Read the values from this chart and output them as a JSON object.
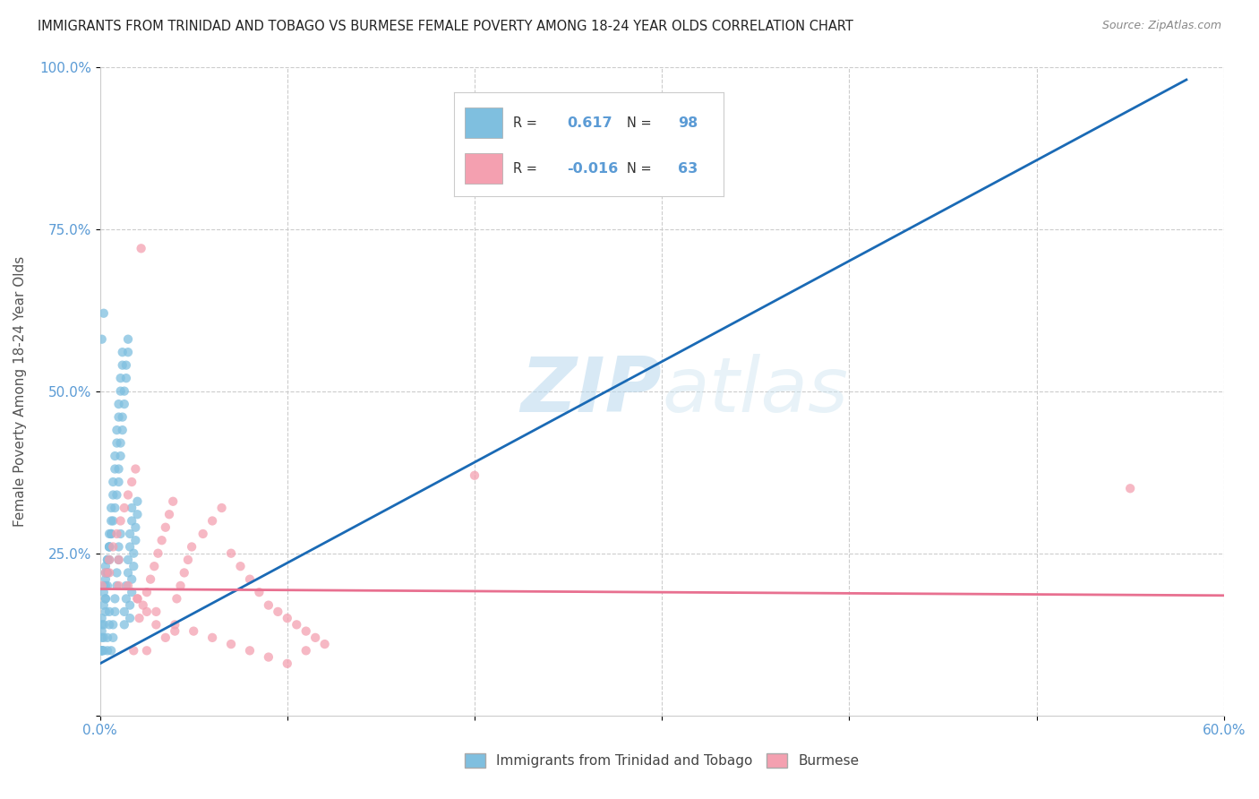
{
  "title": "IMMIGRANTS FROM TRINIDAD AND TOBAGO VS BURMESE FEMALE POVERTY AMONG 18-24 YEAR OLDS CORRELATION CHART",
  "source": "Source: ZipAtlas.com",
  "ylabel": "Female Poverty Among 18-24 Year Olds",
  "xlim": [
    0.0,
    0.6
  ],
  "ylim": [
    0.0,
    1.0
  ],
  "blue_color": "#7fbfdf",
  "pink_color": "#f4a0b0",
  "blue_line_color": "#1a6ab5",
  "pink_line_color": "#e87090",
  "blue_R": 0.617,
  "blue_N": 98,
  "pink_R": -0.016,
  "pink_N": 63,
  "watermark_zip": "ZIP",
  "watermark_atlas": "atlas",
  "background_color": "#ffffff",
  "grid_color": "#cccccc",
  "blue_scatter_x": [
    0.002,
    0.003,
    0.004,
    0.005,
    0.006,
    0.007,
    0.008,
    0.009,
    0.01,
    0.01,
    0.011,
    0.011,
    0.012,
    0.012,
    0.013,
    0.013,
    0.014,
    0.014,
    0.015,
    0.015,
    0.016,
    0.016,
    0.017,
    0.017,
    0.018,
    0.018,
    0.019,
    0.019,
    0.02,
    0.02,
    0.003,
    0.003,
    0.004,
    0.004,
    0.005,
    0.005,
    0.006,
    0.006,
    0.007,
    0.007,
    0.008,
    0.008,
    0.009,
    0.009,
    0.01,
    0.01,
    0.011,
    0.011,
    0.012,
    0.012,
    0.013,
    0.013,
    0.014,
    0.014,
    0.015,
    0.015,
    0.016,
    0.016,
    0.017,
    0.017,
    0.001,
    0.002,
    0.002,
    0.003,
    0.003,
    0.004,
    0.004,
    0.005,
    0.005,
    0.006,
    0.006,
    0.007,
    0.007,
    0.008,
    0.008,
    0.009,
    0.009,
    0.01,
    0.01,
    0.011,
    0.001,
    0.001,
    0.002,
    0.002,
    0.003,
    0.003,
    0.004,
    0.004,
    0.005,
    0.005,
    0.001,
    0.002,
    0.002,
    0.001,
    0.001,
    0.001,
    0.001,
    0.001
  ],
  "blue_scatter_y": [
    0.2,
    0.22,
    0.24,
    0.26,
    0.28,
    0.3,
    0.32,
    0.34,
    0.36,
    0.38,
    0.4,
    0.42,
    0.44,
    0.46,
    0.48,
    0.5,
    0.52,
    0.54,
    0.56,
    0.58,
    0.15,
    0.17,
    0.19,
    0.21,
    0.23,
    0.25,
    0.27,
    0.29,
    0.31,
    0.33,
    0.18,
    0.2,
    0.22,
    0.24,
    0.26,
    0.28,
    0.3,
    0.32,
    0.34,
    0.36,
    0.38,
    0.4,
    0.42,
    0.44,
    0.46,
    0.48,
    0.5,
    0.52,
    0.54,
    0.56,
    0.14,
    0.16,
    0.18,
    0.2,
    0.22,
    0.24,
    0.26,
    0.28,
    0.3,
    0.32,
    0.1,
    0.12,
    0.14,
    0.16,
    0.18,
    0.2,
    0.22,
    0.24,
    0.26,
    0.28,
    0.1,
    0.12,
    0.14,
    0.16,
    0.18,
    0.2,
    0.22,
    0.24,
    0.26,
    0.28,
    0.13,
    0.15,
    0.17,
    0.19,
    0.21,
    0.23,
    0.1,
    0.12,
    0.14,
    0.16,
    0.58,
    0.62,
    0.1,
    0.1,
    0.12,
    0.14,
    0.1,
    0.1
  ],
  "pink_scatter_x": [
    0.001,
    0.003,
    0.005,
    0.007,
    0.009,
    0.011,
    0.013,
    0.015,
    0.017,
    0.019,
    0.021,
    0.023,
    0.025,
    0.027,
    0.029,
    0.031,
    0.033,
    0.035,
    0.037,
    0.039,
    0.041,
    0.043,
    0.045,
    0.047,
    0.049,
    0.055,
    0.06,
    0.065,
    0.07,
    0.075,
    0.08,
    0.085,
    0.09,
    0.095,
    0.1,
    0.105,
    0.11,
    0.115,
    0.12,
    0.01,
    0.02,
    0.03,
    0.04,
    0.05,
    0.06,
    0.07,
    0.08,
    0.09,
    0.1,
    0.11,
    0.005,
    0.01,
    0.015,
    0.02,
    0.025,
    0.03,
    0.035,
    0.04,
    0.2,
    0.55,
    0.022,
    0.018,
    0.025
  ],
  "pink_scatter_y": [
    0.2,
    0.22,
    0.24,
    0.26,
    0.28,
    0.3,
    0.32,
    0.34,
    0.36,
    0.38,
    0.15,
    0.17,
    0.19,
    0.21,
    0.23,
    0.25,
    0.27,
    0.29,
    0.31,
    0.33,
    0.18,
    0.2,
    0.22,
    0.24,
    0.26,
    0.28,
    0.3,
    0.32,
    0.25,
    0.23,
    0.21,
    0.19,
    0.17,
    0.16,
    0.15,
    0.14,
    0.13,
    0.12,
    0.11,
    0.2,
    0.18,
    0.16,
    0.14,
    0.13,
    0.12,
    0.11,
    0.1,
    0.09,
    0.08,
    0.1,
    0.22,
    0.24,
    0.2,
    0.18,
    0.16,
    0.14,
    0.12,
    0.13,
    0.37,
    0.35,
    0.72,
    0.1,
    0.1
  ],
  "blue_trend_x": [
    0.0,
    0.58
  ],
  "blue_trend_y": [
    0.08,
    0.98
  ],
  "pink_trend_x": [
    0.0,
    0.6
  ],
  "pink_trend_y": [
    0.195,
    0.185
  ]
}
